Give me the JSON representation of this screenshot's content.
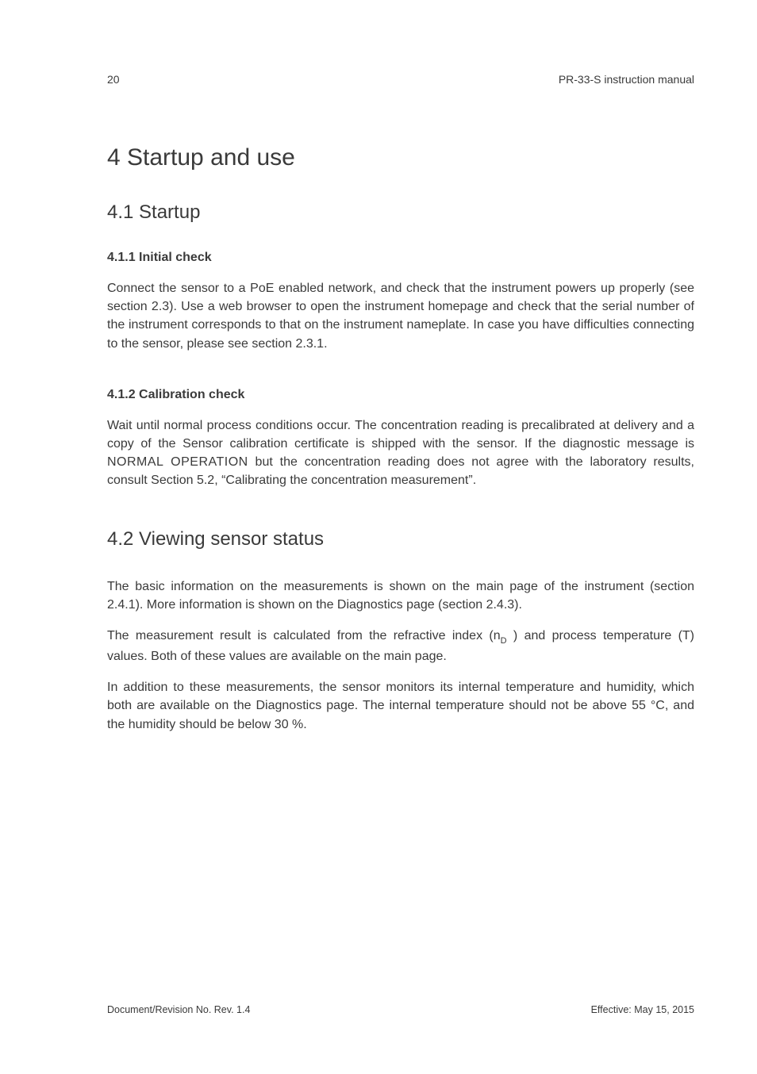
{
  "page_number": "20",
  "header_right": "PR-33-S instruction manual",
  "h1": "4  Startup and use",
  "sec_4_1": {
    "title": "4.1  Startup",
    "sub_4_1_1": {
      "title": "4.1.1   Initial check",
      "p1": "Connect the sensor to a PoE enabled network, and check that the instrument powers up properly (see section 2.3).  Use a web browser to open the instrument homepage and check that the serial number of the instrument corresponds to that on the instrument nameplate.  In case you have difficulties connecting to the sensor, please see section 2.3.1."
    },
    "sub_4_1_2": {
      "title": "4.1.2   Calibration check",
      "p1_a": "Wait until normal process conditions occur. The concentration reading is precalibrated at delivery and a copy of the Sensor calibration certificate is shipped with the sensor. If the diagnostic message is ",
      "p1_sc": "NORMAL OPERATION",
      "p1_b": " but the concentration reading does not agree with the laboratory results, consult Section 5.2, “Calibrating the concentration measurement”."
    }
  },
  "sec_4_2": {
    "title": "4.2  Viewing sensor status",
    "p1": "The basic information on the measurements is shown on the main page of the instrument (section 2.4.1).  More information is shown on the Diagnostics page (section 2.4.3).",
    "p2_a": "The measurement result is calculated from the refractive index (n",
    "p2_sub": "D",
    "p2_b": " ) and process temperature (T) values. Both of these values are available on the main page.",
    "p3": "In addition to these measurements, the sensor monitors its internal temperature and humidity, which both are available on the Diagnostics page. The internal temperature should not be above 55 °C, and the humidity should be below 30 %."
  },
  "footer": {
    "left": "Document/Revision No. Rev. 1.4",
    "right": "Effective: May 15, 2015"
  }
}
